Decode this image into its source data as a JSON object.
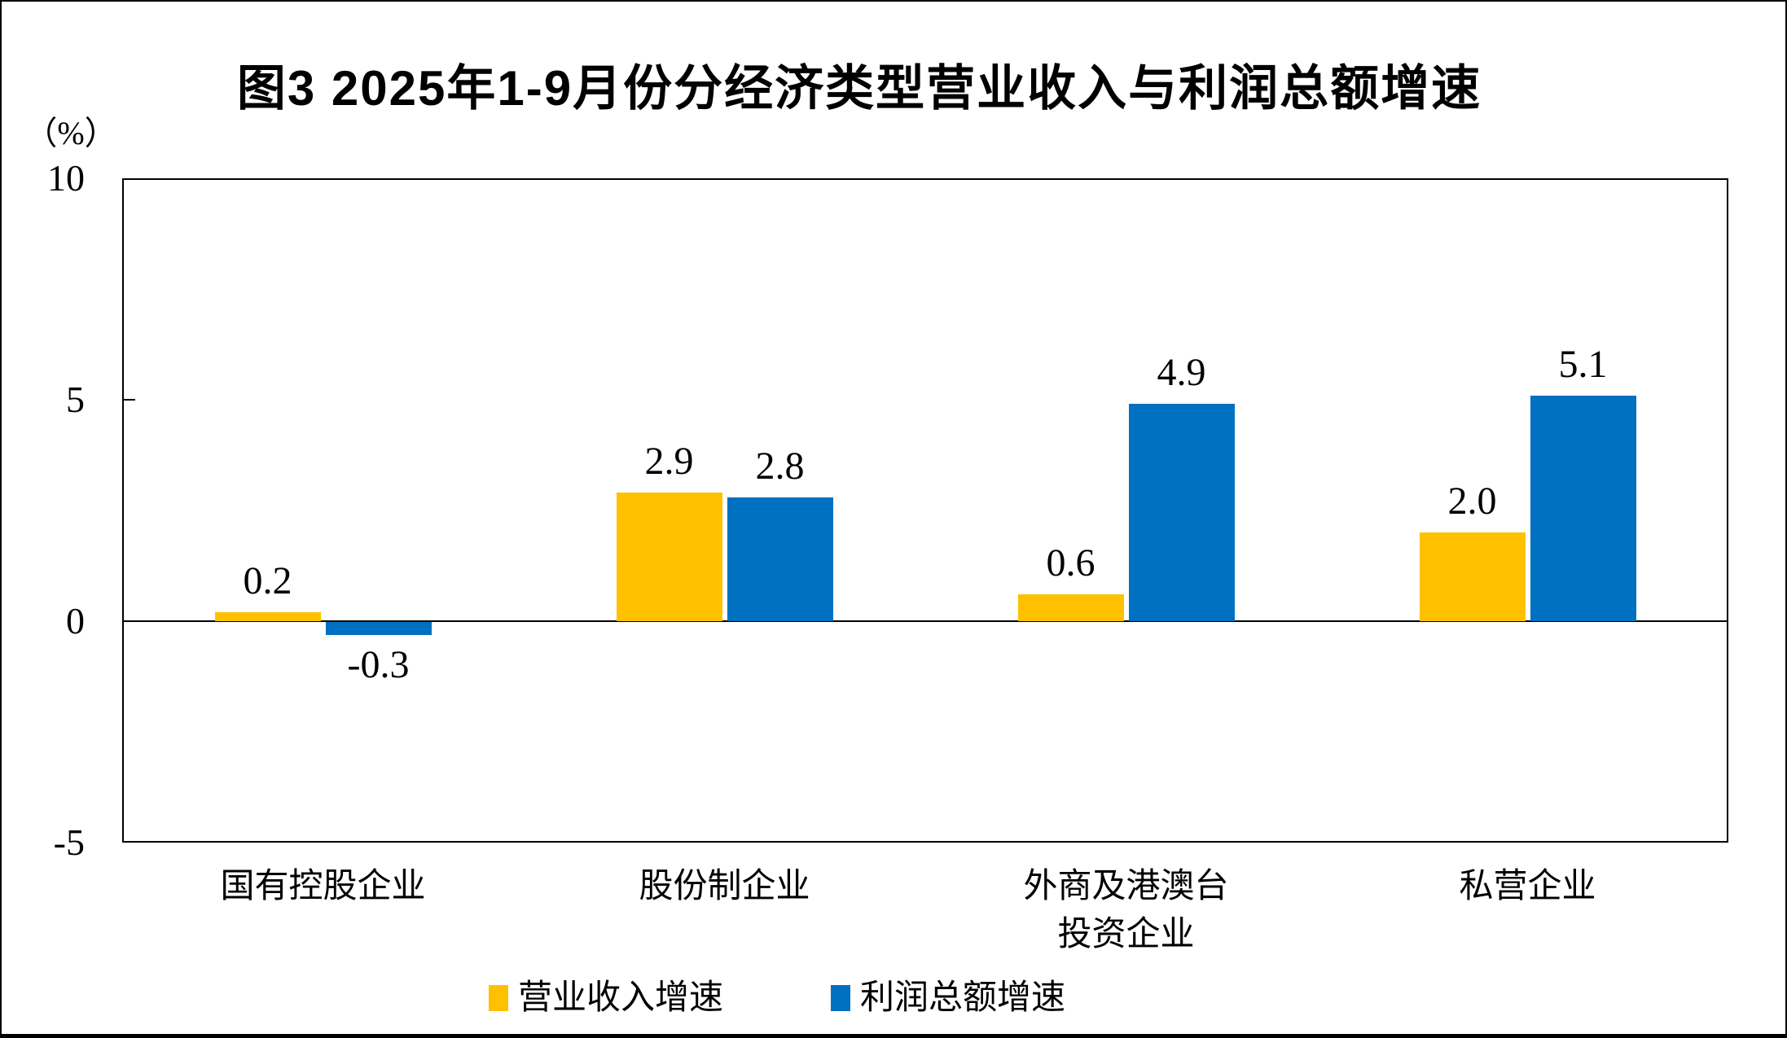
{
  "chart_data": {
    "type": "bar",
    "title": "图3 2025年1-9月份分经济类型营业收入与利润总额增速",
    "ylabel": "（%）",
    "xlabel": "",
    "ylim": [
      -5,
      10
    ],
    "yticks": [
      {
        "label": "10",
        "value": 10
      },
      {
        "label": "5",
        "value": 5
      },
      {
        "label": "0",
        "value": 0
      },
      {
        "label": "-5",
        "value": -5
      }
    ],
    "grid": false,
    "legend_position": "bottom",
    "categories": [
      "国有控股企业",
      "股份制企业",
      "外商及港澳台\n投资企业",
      "私营企业"
    ],
    "series": [
      {
        "name": "营业收入增速",
        "color": "#FFC000",
        "values": [
          0.2,
          2.9,
          0.6,
          2.0
        ],
        "labels": [
          "0.2",
          "2.9",
          "0.6",
          "2.0"
        ]
      },
      {
        "name": "利润总额增速",
        "color": "#0070C0",
        "values": [
          -0.3,
          2.8,
          4.9,
          5.1
        ],
        "labels": [
          "-0.3",
          "2.8",
          "4.9",
          "5.1"
        ]
      }
    ]
  }
}
